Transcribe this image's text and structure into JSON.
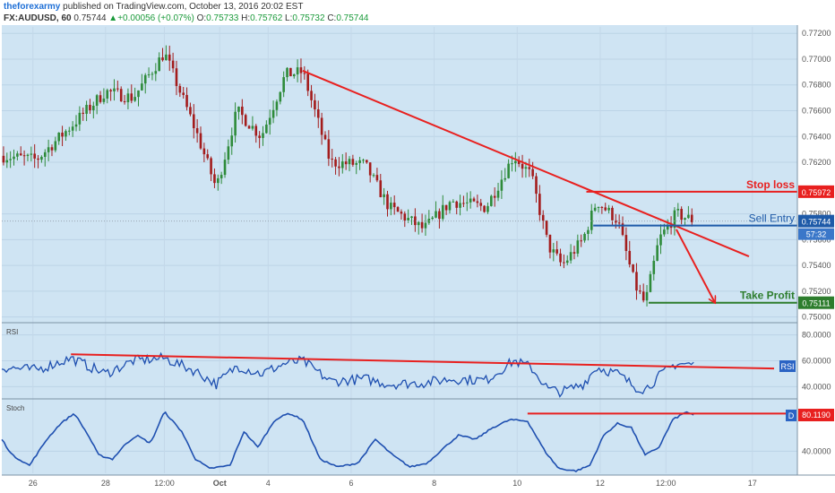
{
  "header": {
    "author": "theforexarmy",
    "published_text": "published on TradingView.com, October 13, 2016 20:02 EST",
    "symbol": "FX:AUDUSD, 60",
    "last": "0.75744",
    "change": "+0.00056 (+0.07%)",
    "open_label": "O:",
    "open": "0.75733",
    "high_label": "H:",
    "high": "0.75762",
    "low_label": "L:",
    "low": "0.75732",
    "close_label": "C:",
    "close": "0.75744"
  },
  "colors": {
    "chart_bg": "#cfe4f3",
    "candle_up": "#2e8b3a",
    "candle_down": "#a31c1c",
    "trendline": "#e8201f",
    "entry": "#1e5aa8",
    "take_profit": "#2d7d2d",
    "indicator_line": "#1e4fb0"
  },
  "chart_data": [
    {
      "type": "candlestick",
      "panel": "price",
      "title": "FX:AUDUSD, 60",
      "ylim": [
        0.7497,
        0.7725
      ],
      "yticks": [
        "0.77200",
        "0.77000",
        "0.76800",
        "0.76600",
        "0.76400",
        "0.76200",
        "0.75800",
        "0.75600",
        "0.75400",
        "0.75200",
        "0.75000"
      ],
      "xticks": [
        "26",
        "28",
        "12:00",
        "Oct",
        "4",
        "6",
        "8",
        "10",
        "12",
        "12:00",
        "17"
      ],
      "xlim": [
        0,
        230
      ],
      "key_points": [
        {
          "x": 0,
          "y": 0.7625
        },
        {
          "x": 10,
          "y": 0.7622
        },
        {
          "x": 20,
          "y": 0.7648
        },
        {
          "x": 30,
          "y": 0.7675
        },
        {
          "x": 38,
          "y": 0.767
        },
        {
          "x": 47,
          "y": 0.7705
        },
        {
          "x": 56,
          "y": 0.7645
        },
        {
          "x": 62,
          "y": 0.76
        },
        {
          "x": 68,
          "y": 0.766
        },
        {
          "x": 75,
          "y": 0.764
        },
        {
          "x": 82,
          "y": 0.7688
        },
        {
          "x": 87,
          "y": 0.769
        },
        {
          "x": 95,
          "y": 0.762
        },
        {
          "x": 105,
          "y": 0.7618
        },
        {
          "x": 112,
          "y": 0.7585
        },
        {
          "x": 122,
          "y": 0.7568
        },
        {
          "x": 130,
          "y": 0.759
        },
        {
          "x": 140,
          "y": 0.7585
        },
        {
          "x": 148,
          "y": 0.7625
        },
        {
          "x": 153,
          "y": 0.761
        },
        {
          "x": 158,
          "y": 0.7555
        },
        {
          "x": 162,
          "y": 0.754
        },
        {
          "x": 168,
          "y": 0.756
        },
        {
          "x": 172,
          "y": 0.759
        },
        {
          "x": 178,
          "y": 0.7575
        },
        {
          "x": 183,
          "y": 0.7525
        },
        {
          "x": 186,
          "y": 0.751
        },
        {
          "x": 190,
          "y": 0.756
        },
        {
          "x": 195,
          "y": 0.758
        },
        {
          "x": 200,
          "y": 0.7575
        }
      ],
      "last_price": "0.75744",
      "countdown": "57:32",
      "annotations": {
        "stop_loss": {
          "label": "Stop loss",
          "price": "0.75972",
          "value": 0.75972
        },
        "sell_entry": {
          "label": "Sell Entry",
          "price": "0.75744",
          "value": 0.75744
        },
        "take_profit": {
          "label": "Take Profit",
          "price": "0.75111",
          "value": 0.75111
        },
        "trendline": {
          "from": {
            "x": 87,
            "y": 0.7691
          },
          "to": {
            "x": 216,
            "y": 0.7547
          }
        }
      }
    },
    {
      "type": "line",
      "panel": "rsi",
      "title": "RSI",
      "ylim": [
        32,
        88
      ],
      "yticks": [
        "80.0000",
        "60.0000",
        "40.0000"
      ],
      "tag": "RSI",
      "key_points": [
        {
          "x": 0,
          "y": 55
        },
        {
          "x": 10,
          "y": 53
        },
        {
          "x": 20,
          "y": 62
        },
        {
          "x": 30,
          "y": 50
        },
        {
          "x": 38,
          "y": 60
        },
        {
          "x": 47,
          "y": 62
        },
        {
          "x": 56,
          "y": 52
        },
        {
          "x": 62,
          "y": 42
        },
        {
          "x": 68,
          "y": 56
        },
        {
          "x": 75,
          "y": 50
        },
        {
          "x": 82,
          "y": 58
        },
        {
          "x": 87,
          "y": 60
        },
        {
          "x": 95,
          "y": 44
        },
        {
          "x": 105,
          "y": 46
        },
        {
          "x": 112,
          "y": 42
        },
        {
          "x": 122,
          "y": 43
        },
        {
          "x": 130,
          "y": 46
        },
        {
          "x": 140,
          "y": 45
        },
        {
          "x": 148,
          "y": 60
        },
        {
          "x": 153,
          "y": 55
        },
        {
          "x": 158,
          "y": 38
        },
        {
          "x": 162,
          "y": 36
        },
        {
          "x": 168,
          "y": 42
        },
        {
          "x": 172,
          "y": 55
        },
        {
          "x": 178,
          "y": 50
        },
        {
          "x": 183,
          "y": 40
        },
        {
          "x": 186,
          "y": 38
        },
        {
          "x": 190,
          "y": 48
        },
        {
          "x": 195,
          "y": 58
        },
        {
          "x": 200,
          "y": 57
        }
      ],
      "trendline": {
        "from": {
          "x": 20,
          "y": 65
        },
        "to": {
          "x": 230,
          "y": 54
        }
      }
    },
    {
      "type": "line",
      "panel": "stoch",
      "title": "Stoch",
      "ylim": [
        12,
        104
      ],
      "yticks": [
        "40.0000"
      ],
      "last_value": "80.1190",
      "tag": "D",
      "key_points": [
        {
          "x": 0,
          "y": 55
        },
        {
          "x": 3,
          "y": 35
        },
        {
          "x": 8,
          "y": 22
        },
        {
          "x": 13,
          "y": 55
        },
        {
          "x": 17,
          "y": 75
        },
        {
          "x": 21,
          "y": 88
        },
        {
          "x": 25,
          "y": 60
        },
        {
          "x": 28,
          "y": 35
        },
        {
          "x": 32,
          "y": 30
        },
        {
          "x": 36,
          "y": 50
        },
        {
          "x": 39,
          "y": 60
        },
        {
          "x": 43,
          "y": 50
        },
        {
          "x": 47,
          "y": 90
        },
        {
          "x": 52,
          "y": 65
        },
        {
          "x": 56,
          "y": 30
        },
        {
          "x": 60,
          "y": 18
        },
        {
          "x": 66,
          "y": 22
        },
        {
          "x": 70,
          "y": 65
        },
        {
          "x": 74,
          "y": 45
        },
        {
          "x": 79,
          "y": 80
        },
        {
          "x": 83,
          "y": 88
        },
        {
          "x": 87,
          "y": 80
        },
        {
          "x": 92,
          "y": 30
        },
        {
          "x": 97,
          "y": 20
        },
        {
          "x": 103,
          "y": 25
        },
        {
          "x": 108,
          "y": 55
        },
        {
          "x": 113,
          "y": 35
        },
        {
          "x": 118,
          "y": 20
        },
        {
          "x": 123,
          "y": 25
        },
        {
          "x": 128,
          "y": 45
        },
        {
          "x": 132,
          "y": 60
        },
        {
          "x": 137,
          "y": 55
        },
        {
          "x": 142,
          "y": 70
        },
        {
          "x": 147,
          "y": 80
        },
        {
          "x": 152,
          "y": 78
        },
        {
          "x": 157,
          "y": 40
        },
        {
          "x": 161,
          "y": 18
        },
        {
          "x": 166,
          "y": 15
        },
        {
          "x": 170,
          "y": 22
        },
        {
          "x": 174,
          "y": 60
        },
        {
          "x": 178,
          "y": 75
        },
        {
          "x": 182,
          "y": 70
        },
        {
          "x": 186,
          "y": 35
        },
        {
          "x": 190,
          "y": 45
        },
        {
          "x": 194,
          "y": 80
        },
        {
          "x": 198,
          "y": 90
        },
        {
          "x": 200,
          "y": 85
        }
      ],
      "trendline": {
        "from": {
          "x": 152,
          "y": 90
        },
        "to": {
          "x": 230,
          "y": 90
        }
      }
    }
  ]
}
